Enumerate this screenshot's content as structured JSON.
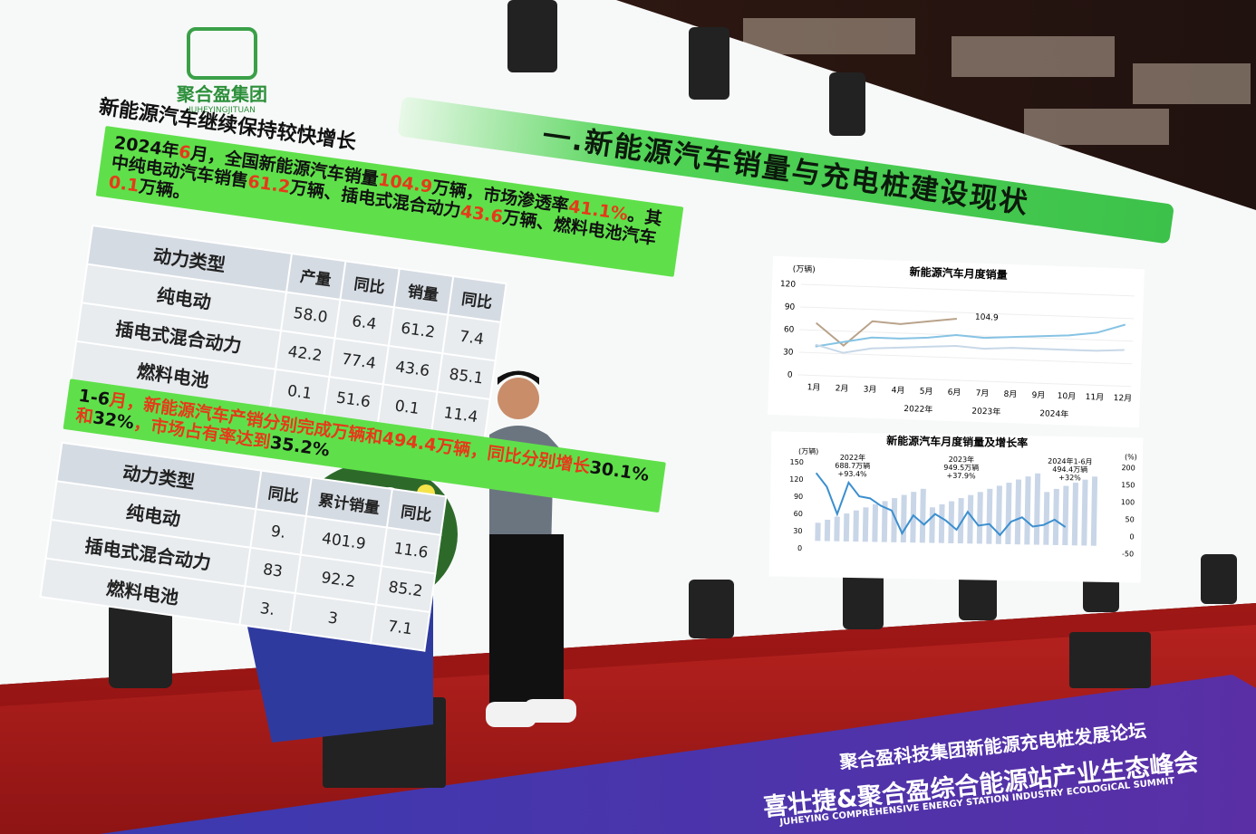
{
  "logo": {
    "name": "聚合盈集团",
    "latin": "JUHEYINGJITUAN"
  },
  "slide": {
    "title": "一.新能源汽车销量与充电桩建设现状",
    "subtitle": "新能源汽车继续保持较快增长",
    "para1": [
      "2024年",
      "6",
      "月，全国新能源汽车销量",
      "104.9",
      "万辆，市场渗透率",
      "41.1%",
      "。其中纯电动汽车销售",
      "61.2",
      "万辆、插电式混合动力",
      "43.6",
      "万辆、燃料电池汽车",
      "0.1",
      "万辆。"
    ],
    "table1": {
      "header": [
        "动力类型",
        "产量",
        "同比",
        "销量",
        "同比"
      ],
      "rows": [
        [
          "纯电动",
          "58.0",
          "6.4",
          "61.2",
          "7.4"
        ],
        [
          "插电式混合动力",
          "42.2",
          "77.4",
          "43.6",
          "85.1"
        ],
        [
          "燃料电池",
          "0.1",
          "51.6",
          "0.1",
          "11.4"
        ]
      ]
    },
    "para2": [
      "1-6",
      "月，新能源汽车产销分别完成",
      "",
      "万辆和494.4万辆，同比分别增长",
      "30.1%",
      "和",
      "32%",
      "，市场占有率达到",
      "35.2%",
      ""
    ],
    "table2": {
      "header": [
        "动力类型",
        "同比",
        "累计销量",
        "同比"
      ],
      "rows": [
        [
          "纯电动",
          "9.",
          "401.9",
          "11.6"
        ],
        [
          "插电式混合动力",
          "83",
          "92.2",
          "85.2"
        ],
        [
          "燃料电池",
          "3.",
          "3",
          "7.1"
        ]
      ]
    },
    "chart1": {
      "title": "新能源汽车月度销量",
      "unit": "(万辆)",
      "yticks": [
        "120",
        "90",
        "60",
        "30",
        "0"
      ],
      "months": [
        "1月",
        "2月",
        "3月",
        "4月",
        "5月",
        "6月",
        "7月",
        "8月",
        "9月",
        "10月",
        "11月",
        "12月"
      ],
      "legend": [
        "2022年",
        "2023年",
        "2024年"
      ],
      "callout": "104.9"
    },
    "chart2": {
      "title": "新能源汽车月度销量及增长率",
      "unit_left": "(万辆)",
      "unit_right": "(%)",
      "yticks_left": [
        "150",
        "120",
        "90",
        "60",
        "30",
        "0"
      ],
      "yticks_right": [
        "200",
        "150",
        "100",
        "50",
        "0",
        "-50"
      ],
      "notes": [
        [
          "2022年",
          "688.7万辆",
          "+93.4%"
        ],
        [
          "2023年",
          "949.5万辆",
          "+37.9%"
        ],
        [
          "2024年1-6月",
          "494.4万辆",
          "+32%"
        ]
      ]
    }
  },
  "banner": {
    "line1": "聚合盈科技集团新能源充电桩发展论坛",
    "line2": "喜壮捷&聚合盈综合能源站产业生态峰会",
    "latin": "JUHEYING COMPREHENSIVE ENERGY STATION INDUSTRY ECOLOGICAL SUMMIT"
  }
}
